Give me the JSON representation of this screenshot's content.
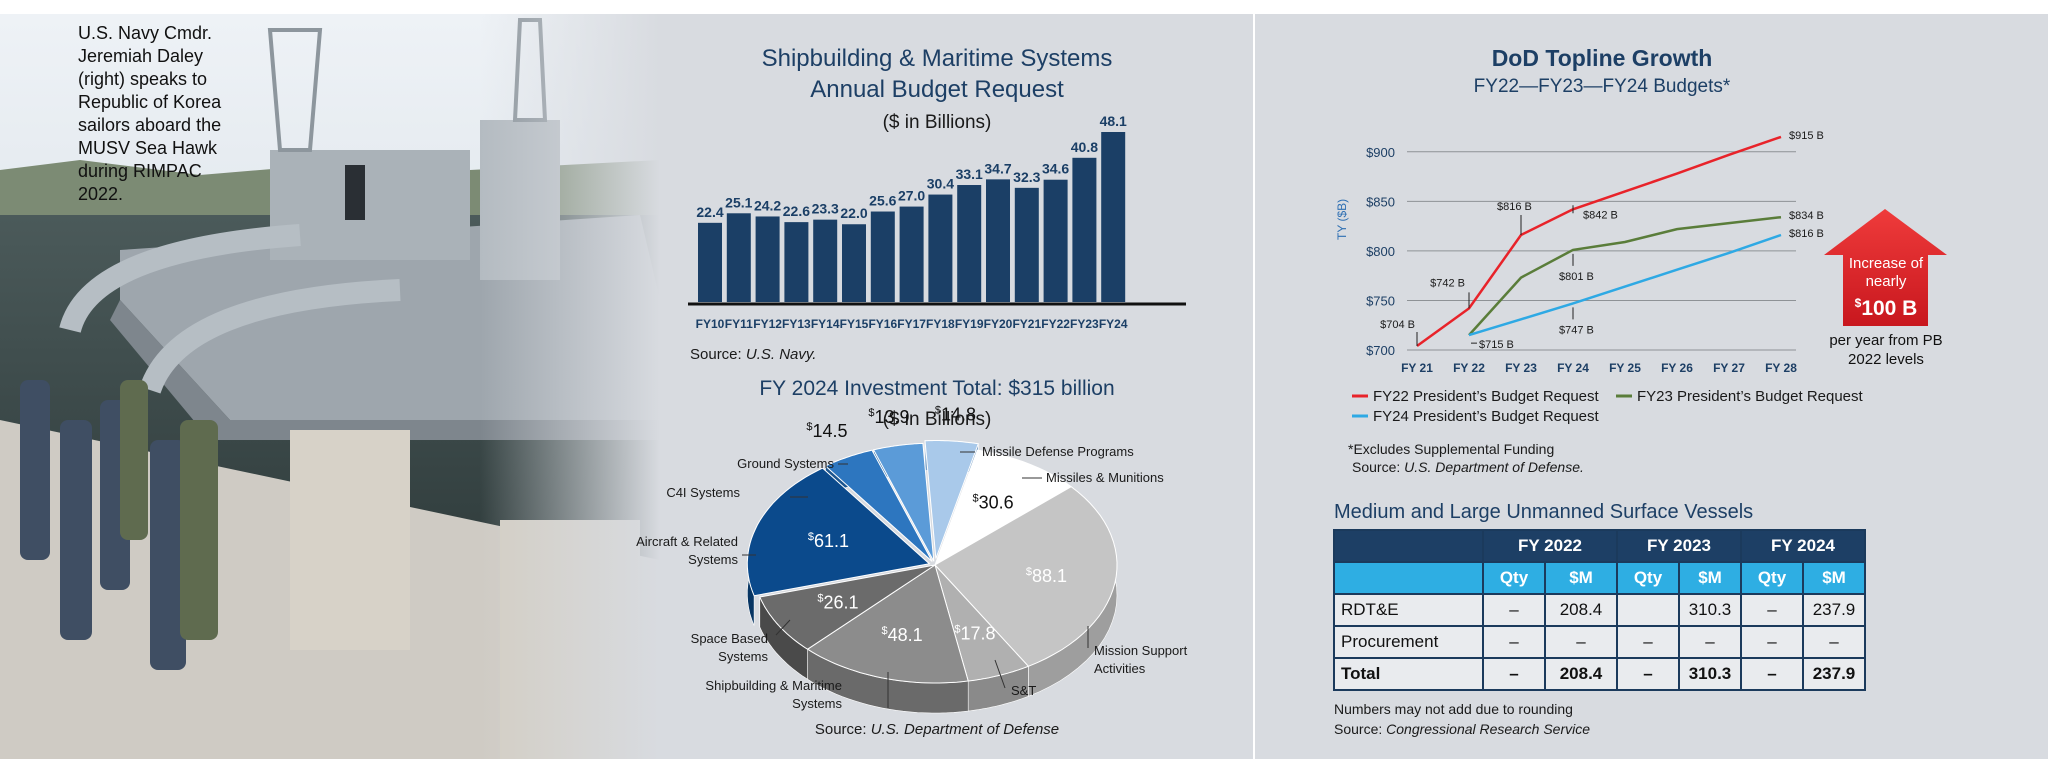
{
  "caption": "U.S. Navy Cmdr. Jeremiah Daley (right) speaks to Republic of Korea sailors aboard the MUSV Sea Hawk during RIMPAC 2022.",
  "photo": {
    "description_icon": "ship-photo"
  },
  "colors": {
    "navy": "#1b3f66",
    "red": "#e8232a",
    "green": "#5a7d3a",
    "blue": "#2ea9e4",
    "panel": "#d8dbe0"
  },
  "chart_data": [
    {
      "type": "bar",
      "title": "Shipbuilding & Maritime Systems Annual Budget Request",
      "subtitle": "($ in Billions)",
      "categories": [
        "FY10",
        "FY11",
        "FY12",
        "FY13",
        "FY14",
        "FY15",
        "FY16",
        "FY17",
        "FY18",
        "FY19",
        "FY20",
        "FY21",
        "FY22",
        "FY23",
        "FY24"
      ],
      "values": [
        22.4,
        25.1,
        24.2,
        22.6,
        23.3,
        22.0,
        25.6,
        27.0,
        30.4,
        33.1,
        34.7,
        32.3,
        34.6,
        40.8,
        48.1
      ],
      "value_labels": [
        "22.4",
        "25.1",
        "24.2",
        "22.6",
        "23.3",
        "22.0",
        "25.6",
        "27.0",
        "30.4",
        "33.1",
        "34.7",
        "32.3",
        "34.6",
        "40.8",
        "48.1"
      ],
      "source_label": "Source: ",
      "source": "U.S. Navy."
    },
    {
      "type": "pie",
      "title": "FY 2024 Investment Total: $315 billion",
      "subtitle": "($ in Billions)",
      "slices": [
        {
          "label": "Missile Defense Programs",
          "value": 14.8,
          "text": "14.8"
        },
        {
          "label": "Missiles & Munitions",
          "value": 30.6,
          "text": "30.6"
        },
        {
          "label": "Mission Support Activities",
          "value": 88.1,
          "text": "88.1"
        },
        {
          "label": "S&T",
          "value": 17.8,
          "text": "17.8"
        },
        {
          "label": "Shipbuilding & Maritime Systems",
          "value": 48.1,
          "text": "48.1"
        },
        {
          "label": "Space Based Systems",
          "value": 26.1,
          "text": "26.1"
        },
        {
          "label": "Aircraft & Related Systems",
          "value": 61.1,
          "text": "61.1"
        },
        {
          "label": "C4I Systems",
          "value": 14.5,
          "text": "14.5"
        },
        {
          "label": "Ground Systems",
          "value": 13.9,
          "text": "13.9"
        }
      ],
      "source_label": "Source: ",
      "source": "U.S. Department of Defense"
    },
    {
      "type": "line",
      "title": "DoD Topline Growth",
      "subtitle": "FY22—FY23—FY24 Budgets*",
      "ylabel": "TY ($B)",
      "x": [
        "FY 21",
        "FY 22",
        "FY 23",
        "FY 24",
        "FY 25",
        "FY 26",
        "FY 27",
        "FY 28"
      ],
      "ylim": [
        700,
        925
      ],
      "yticks": [
        "$700",
        "$750",
        "$800",
        "$850",
        "$900"
      ],
      "series": [
        {
          "name": "FY22 President’s Budget Request",
          "x": [
            0,
            1,
            2,
            3,
            4,
            5,
            6,
            7
          ],
          "values": [
            704,
            742,
            816,
            842,
            860,
            878,
            897,
            915
          ]
        },
        {
          "name": "FY23 President’s Budget Request",
          "x": [
            1,
            2,
            3,
            4,
            5,
            6,
            7
          ],
          "values": [
            715,
            773,
            801,
            809,
            822,
            828,
            834
          ]
        },
        {
          "name": "FY24 President’s Budget Request",
          "x": [
            1,
            2,
            3,
            4,
            5,
            6,
            7
          ],
          "values": [
            715,
            731,
            747,
            764,
            781,
            798,
            816
          ]
        }
      ],
      "annotations": [
        "$704 B",
        "$742 B",
        "$715 B",
        "$816 B",
        "$842 B",
        "$801 B",
        "$747 B",
        "$915 B",
        "$834 B",
        "$816 B"
      ],
      "callout": {
        "line1": "Increase of",
        "line2": "nearly",
        "line3": "100 B",
        "line4": "per year from PB",
        "line5": "2022 levels"
      },
      "footnote": "*Excludes Supplemental Funding",
      "source_label": "Source: ",
      "source": "U.S. Department of Defense."
    },
    {
      "type": "table",
      "title": "Medium and Large Unmanned Surface Vessels",
      "year_headers": [
        "FY 2022",
        "FY 2023",
        "FY 2024"
      ],
      "sub_headers": [
        "Qty",
        "$M",
        "Qty",
        "$M",
        "Qty",
        "$M"
      ],
      "rows": [
        {
          "label": "RDT&E",
          "cells": [
            "–",
            "208.4",
            "",
            "310.3",
            "–",
            "237.9"
          ]
        },
        {
          "label": "Procurement",
          "cells": [
            "–",
            "–",
            "–",
            "–",
            "–",
            "–"
          ]
        },
        {
          "label": "Total",
          "cells": [
            "–",
            "208.4",
            "–",
            "310.3",
            "–",
            "237.9"
          ]
        }
      ],
      "note": "Numbers may not add due to rounding",
      "source_label": "Source: ",
      "source": "Congressional Research Service"
    }
  ]
}
